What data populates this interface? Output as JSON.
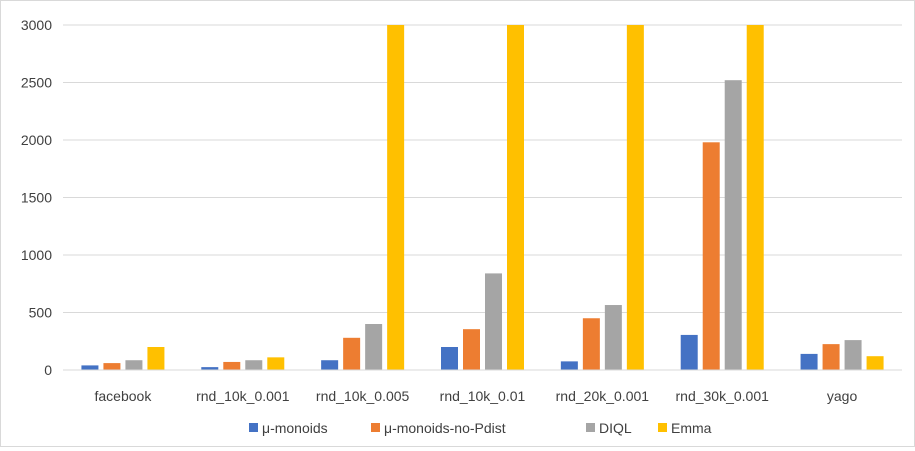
{
  "chart_data": {
    "type": "bar",
    "title": "",
    "xlabel": "",
    "ylabel": "",
    "ylim": [
      0,
      3000
    ],
    "yticks": [
      0,
      500,
      1000,
      1500,
      2000,
      2500,
      3000
    ],
    "grid": true,
    "legend_position": "bottom",
    "categories": [
      "facebook",
      "rnd_10k_0.001",
      "rnd_10k_0.005",
      "rnd_10k_0.01",
      "rnd_20k_0.001",
      "rnd_30k_0.001",
      "yago"
    ],
    "series": [
      {
        "name": "μ-monoids",
        "color": "#4472c4",
        "values": [
          40,
          25,
          85,
          200,
          75,
          305,
          140
        ]
      },
      {
        "name": "μ-monoids-no-Pdist",
        "color": "#ed7d31",
        "values": [
          60,
          70,
          280,
          355,
          450,
          1980,
          225
        ]
      },
      {
        "name": "DIQL",
        "color": "#a5a5a5",
        "values": [
          85,
          85,
          400,
          840,
          565,
          2520,
          260
        ]
      },
      {
        "name": "Emma",
        "color": "#ffc000",
        "values": [
          200,
          110,
          3000,
          3000,
          3000,
          3000,
          120
        ]
      }
    ]
  }
}
